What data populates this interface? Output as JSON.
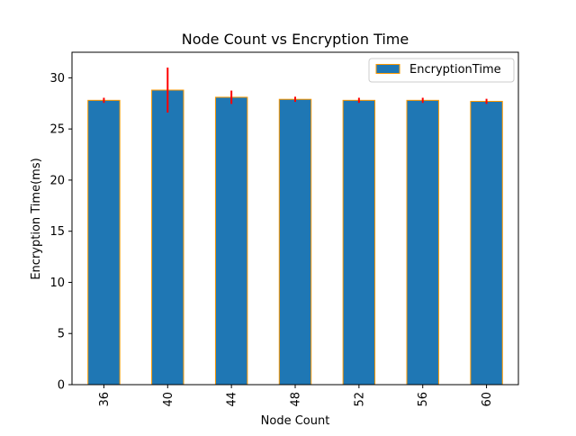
{
  "chart_data": {
    "type": "bar",
    "title": "Node Count vs Encryption Time",
    "xlabel": "Node Count",
    "ylabel": "Encryption Time(ms)",
    "categories": [
      "36",
      "40",
      "44",
      "48",
      "52",
      "56",
      "60"
    ],
    "series": [
      {
        "name": "EncryptionTime",
        "values": [
          27.8,
          28.8,
          28.1,
          27.9,
          27.8,
          27.8,
          27.7
        ],
        "errors": [
          0.25,
          2.2,
          0.65,
          0.25,
          0.25,
          0.25,
          0.25
        ]
      }
    ],
    "ylim": [
      0,
      32.5
    ],
    "yticks": [
      0,
      5,
      10,
      15,
      20,
      25,
      30
    ],
    "grid": false,
    "legend_position": "top-right",
    "colors": {
      "bar_fill": "#1f77b4",
      "bar_edge": "#ff9900",
      "error_bar": "#ff0000"
    }
  }
}
